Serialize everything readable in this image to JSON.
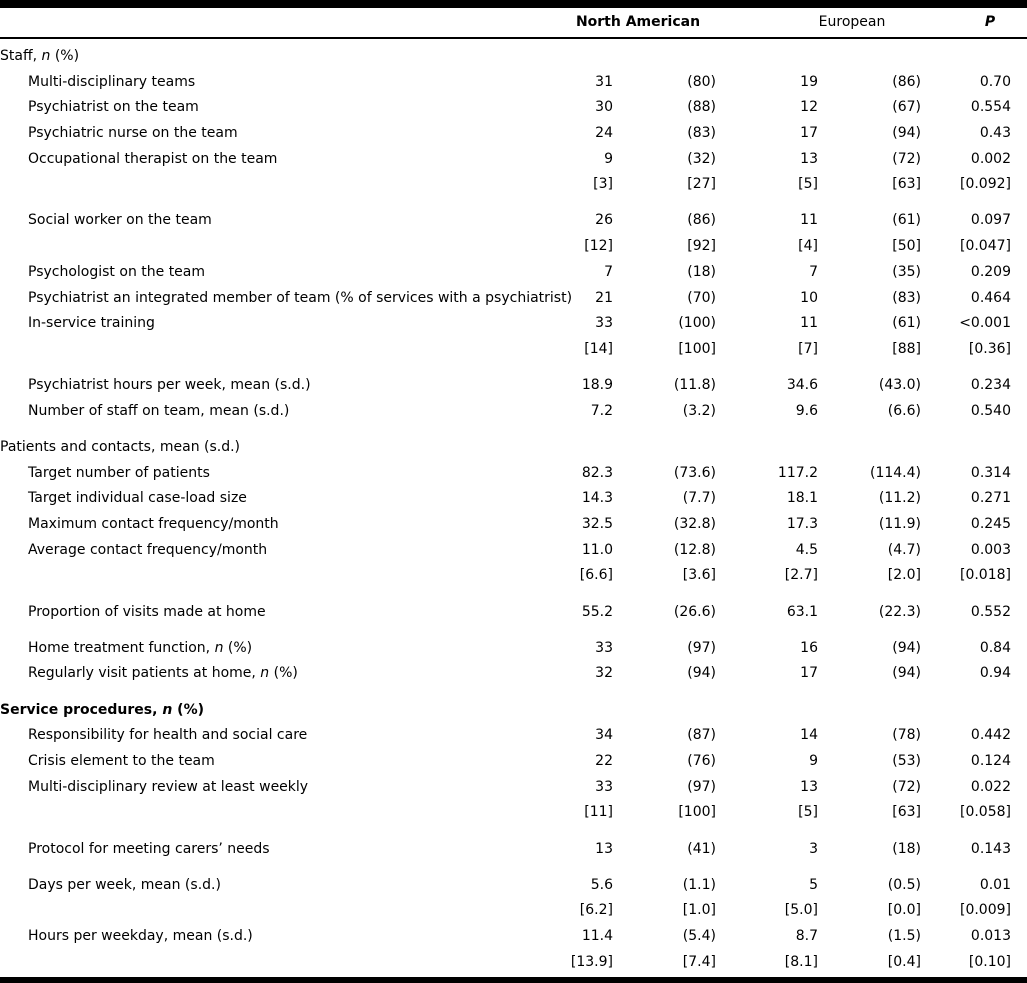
{
  "table": {
    "header": {
      "north_american": "North American",
      "european": "European",
      "p": "P"
    },
    "rows": [
      {
        "type": "section",
        "label": "Staff, n (%)"
      },
      {
        "type": "item",
        "label": "Multi-disciplinary teams",
        "cells": [
          "31",
          "(80)",
          "19",
          "(86)",
          "0.70"
        ]
      },
      {
        "type": "item",
        "label": "Psychiatrist on the team",
        "cells": [
          "30",
          "(88)",
          "12",
          "(67)",
          "0.554"
        ]
      },
      {
        "type": "item",
        "label": "Psychiatric nurse on the team",
        "cells": [
          "24",
          "(83)",
          "17",
          "(94)",
          "0.43"
        ]
      },
      {
        "type": "item",
        "label": "Occupational therapist on the team",
        "cells": [
          "9",
          "(32)",
          "13",
          "(72)",
          "0.002"
        ]
      },
      {
        "type": "sub",
        "cells": [
          "[3]",
          "[27]",
          "[5]",
          "[63]",
          "[0.092]"
        ]
      },
      {
        "type": "gap"
      },
      {
        "type": "item",
        "label": "Social worker on the team",
        "cells": [
          "26",
          "(86)",
          "11",
          "(61)",
          "0.097"
        ]
      },
      {
        "type": "sub",
        "cells": [
          "[12]",
          "[92]",
          "[4]",
          "[50]",
          "[0.047]"
        ]
      },
      {
        "type": "item",
        "label": "Psychologist on the team",
        "cells": [
          "7",
          "(18)",
          "7",
          "(35)",
          "0.209"
        ]
      },
      {
        "type": "item",
        "label": "Psychiatrist an integrated member of team (% of services with a psychiatrist)",
        "cells": [
          "21",
          "(70)",
          "10",
          "(83)",
          "0.464"
        ]
      },
      {
        "type": "item",
        "label": "In-service training",
        "cells": [
          "33",
          "(100)",
          "11",
          "(61)",
          "<0.001"
        ]
      },
      {
        "type": "sub",
        "cells": [
          "[14]",
          "[100]",
          "[7]",
          "[88]",
          "[0.36]"
        ]
      },
      {
        "type": "gap"
      },
      {
        "type": "item",
        "label": "Psychiatrist hours per week, mean (s.d.)",
        "cells": [
          "18.9",
          "(11.8)",
          "34.6",
          "(43.0)",
          "0.234"
        ]
      },
      {
        "type": "item",
        "label": "Number of staff on team, mean (s.d.)",
        "cells": [
          "7.2",
          "(3.2)",
          "9.6",
          "(6.6)",
          "0.540"
        ]
      },
      {
        "type": "gap"
      },
      {
        "type": "section",
        "label": "Patients and contacts, mean (s.d.)"
      },
      {
        "type": "item",
        "label": "Target number of patients",
        "cells": [
          "82.3",
          "(73.6)",
          "117.2",
          "(114.4)",
          "0.314"
        ]
      },
      {
        "type": "item",
        "label": "Target individual case-load size",
        "cells": [
          "14.3",
          "(7.7)",
          "18.1",
          "(11.2)",
          "0.271"
        ]
      },
      {
        "type": "item",
        "label": "Maximum contact frequency/month",
        "cells": [
          "32.5",
          "(32.8)",
          "17.3",
          "(11.9)",
          "0.245"
        ]
      },
      {
        "type": "item",
        "label": "Average contact frequency/month",
        "cells": [
          "11.0",
          "(12.8)",
          "4.5",
          "(4.7)",
          "0.003"
        ]
      },
      {
        "type": "sub",
        "cells": [
          "[6.6]",
          "[3.6]",
          "[2.7]",
          "[2.0]",
          "[0.018]"
        ]
      },
      {
        "type": "gap"
      },
      {
        "type": "item",
        "label": "Proportion of visits made at home",
        "cells": [
          "55.2",
          "(26.6)",
          "63.1",
          "(22.3)",
          "0.552"
        ]
      },
      {
        "type": "gap"
      },
      {
        "type": "item",
        "label": "Home treatment function, n (%)",
        "cells": [
          "33",
          "(97)",
          "16",
          "(94)",
          "0.84"
        ]
      },
      {
        "type": "item",
        "label": "Regularly visit patients at home, n (%)",
        "cells": [
          "32",
          "(94)",
          "17",
          "(94)",
          "0.94"
        ]
      },
      {
        "type": "gap"
      },
      {
        "type": "section",
        "label": "Service procedures, n (%)",
        "bold": true
      },
      {
        "type": "item",
        "label": "Responsibility for health and social care",
        "cells": [
          "34",
          "(87)",
          "14",
          "(78)",
          "0.442"
        ]
      },
      {
        "type": "item",
        "label": "Crisis element to the team",
        "cells": [
          "22",
          "(76)",
          "9",
          "(53)",
          "0.124"
        ]
      },
      {
        "type": "item",
        "label": "Multi-disciplinary review at least weekly",
        "cells": [
          "33",
          "(97)",
          "13",
          "(72)",
          "0.022"
        ]
      },
      {
        "type": "sub",
        "cells": [
          "[11]",
          "[100]",
          "[5]",
          "[63]",
          "[0.058]"
        ]
      },
      {
        "type": "gap"
      },
      {
        "type": "item",
        "label": "Protocol for meeting carers’ needs",
        "cells": [
          "13",
          "(41)",
          "3",
          "(18)",
          "0.143"
        ]
      },
      {
        "type": "gap"
      },
      {
        "type": "item",
        "label": "Days per week, mean (s.d.)",
        "cells": [
          "5.6",
          "(1.1)",
          "5",
          "(0.5)",
          "0.01"
        ]
      },
      {
        "type": "sub",
        "cells": [
          "[6.2]",
          "[1.0]",
          "[5.0]",
          "[0.0]",
          "[0.009]"
        ]
      },
      {
        "type": "item",
        "label": "Hours per weekday, mean (s.d.)",
        "cells": [
          "11.4",
          "(5.4)",
          "8.7",
          "(1.5)",
          "0.013"
        ]
      },
      {
        "type": "sub",
        "cells": [
          "[13.9]",
          "[7.4]",
          "[8.1]",
          "[0.4]",
          "[0.10]"
        ]
      }
    ]
  }
}
